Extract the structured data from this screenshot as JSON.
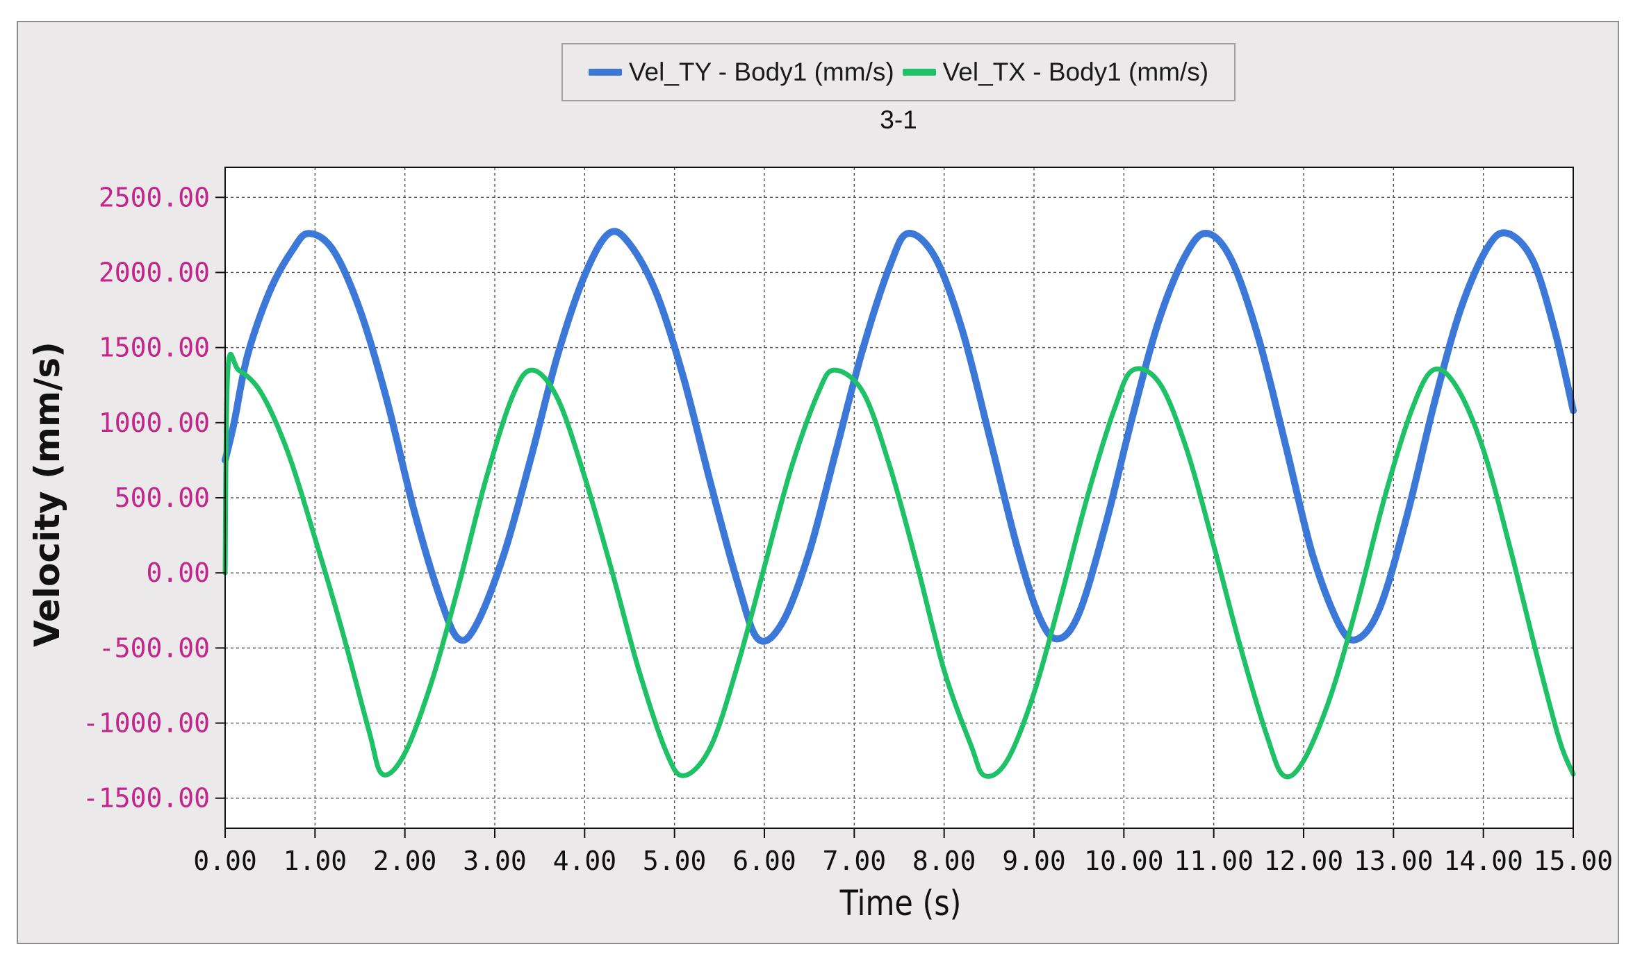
{
  "chart_data": {
    "type": "line",
    "title": "3-1",
    "xlabel": "Time (s)",
    "ylabel": "Velocity (mm/s)",
    "xlim": [
      0,
      15
    ],
    "ylim": [
      -1700,
      2700
    ],
    "grid": true,
    "legend_position": "top-center",
    "xticks": [
      "0.00",
      "1.00",
      "2.00",
      "3.00",
      "4.00",
      "5.00",
      "6.00",
      "7.00",
      "8.00",
      "9.00",
      "10.00",
      "11.00",
      "12.00",
      "13.00",
      "14.00",
      "15.00"
    ],
    "yticks": [
      "2500.00",
      "2000.00",
      "1500.00",
      "1000.00",
      "500.00",
      "0.00",
      "-500.00",
      "-1000.00",
      "-1500.00"
    ],
    "series": [
      {
        "name": "Vel_TY - Body1 (mm/s)",
        "color": "#3b78d8",
        "x": [
          0.0,
          0.1,
          0.25,
          0.5,
          0.75,
          0.93,
          1.2,
          1.5,
          1.8,
          2.1,
          2.4,
          2.6,
          2.8,
          3.1,
          3.4,
          3.7,
          4.0,
          4.27,
          4.5,
          4.8,
          5.1,
          5.4,
          5.7,
          5.93,
          6.2,
          6.5,
          6.8,
          7.1,
          7.4,
          7.6,
          7.9,
          8.2,
          8.5,
          8.8,
          9.05,
          9.26,
          9.5,
          9.8,
          10.1,
          10.4,
          10.7,
          10.93,
          11.2,
          11.5,
          11.8,
          12.1,
          12.4,
          12.6,
          12.85,
          13.15,
          13.45,
          13.75,
          14.05,
          14.27,
          14.55,
          14.8,
          15.0
        ],
        "y": [
          750,
          1000,
          1450,
          1880,
          2150,
          2260,
          2150,
          1750,
          1150,
          420,
          -180,
          -440,
          -340,
          120,
          760,
          1450,
          1980,
          2260,
          2190,
          1860,
          1300,
          600,
          -60,
          -440,
          -330,
          140,
          820,
          1500,
          2050,
          2260,
          2100,
          1620,
          920,
          200,
          -280,
          -440,
          -270,
          330,
          1050,
          1700,
          2130,
          2260,
          2080,
          1560,
          850,
          120,
          -350,
          -440,
          -230,
          380,
          1120,
          1760,
          2170,
          2260,
          2080,
          1600,
          1080
        ]
      },
      {
        "name": "Vel_TX - Body1 (mm/s)",
        "color": "#1ec165",
        "x": [
          0.0,
          0.03,
          0.15,
          0.4,
          0.7,
          1.0,
          1.3,
          1.6,
          1.75,
          2.0,
          2.3,
          2.6,
          2.9,
          3.2,
          3.42,
          3.7,
          4.0,
          4.3,
          4.6,
          4.9,
          5.1,
          5.4,
          5.7,
          6.0,
          6.3,
          6.6,
          6.78,
          7.1,
          7.4,
          7.7,
          8.0,
          8.3,
          8.45,
          8.7,
          9.0,
          9.3,
          9.6,
          9.9,
          10.1,
          10.4,
          10.7,
          11.0,
          11.3,
          11.6,
          11.78,
          12.0,
          12.3,
          12.6,
          12.9,
          13.2,
          13.44,
          13.7,
          14.0,
          14.3,
          14.6,
          14.85,
          15.0
        ],
        "y": [
          0,
          1350,
          1350,
          1200,
          800,
          230,
          -380,
          -1050,
          -1340,
          -1200,
          -720,
          -80,
          620,
          1180,
          1350,
          1160,
          640,
          20,
          -640,
          -1180,
          -1350,
          -1160,
          -620,
          40,
          700,
          1200,
          1350,
          1200,
          700,
          50,
          -650,
          -1150,
          -1350,
          -1250,
          -800,
          -160,
          520,
          1100,
          1350,
          1260,
          820,
          180,
          -500,
          -1100,
          -1350,
          -1250,
          -820,
          -200,
          500,
          1080,
          1350,
          1240,
          820,
          160,
          -560,
          -1120,
          -1340
        ]
      }
    ]
  }
}
